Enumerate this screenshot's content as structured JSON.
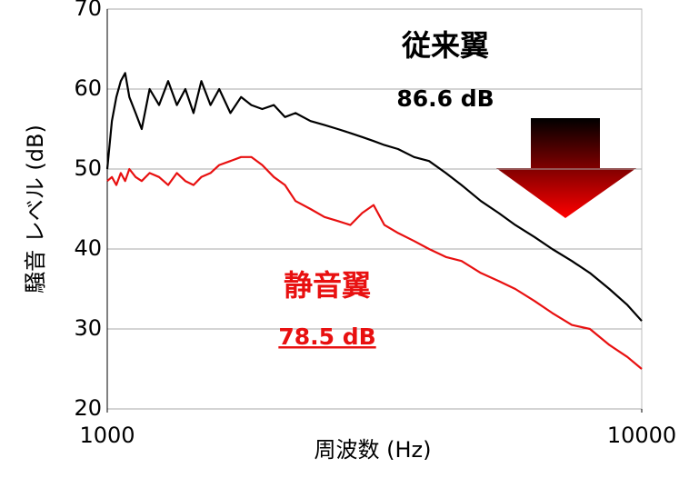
{
  "chart_data": {
    "type": "line",
    "x_label": "周波数 (Hz)",
    "y_label": "騒音 レベル (dB)",
    "x": [
      1000,
      1020,
      1040,
      1060,
      1080,
      1100,
      1130,
      1160,
      1200,
      1250,
      1300,
      1350,
      1400,
      1450,
      1500,
      1560,
      1620,
      1700,
      1780,
      1860,
      1950,
      2050,
      2150,
      2250,
      2400,
      2550,
      2700,
      2850,
      3000,
      3150,
      3300,
      3500,
      3750,
      4000,
      4300,
      4600,
      5000,
      5400,
      5800,
      6300,
      6800,
      7400,
      8000,
      8700,
      9400,
      10000
    ],
    "xlim": [
      1000,
      10000
    ],
    "xticks": [
      1000,
      10000
    ],
    "xscale": "log",
    "ylim": [
      20,
      70
    ],
    "yticks": [
      20,
      30,
      40,
      50,
      60,
      70
    ],
    "grid": true,
    "series": [
      {
        "name": "従来翼",
        "color": "#000000",
        "values": [
          50,
          56,
          59,
          61,
          62,
          59,
          57,
          55,
          60,
          58,
          61,
          58,
          60,
          57,
          61,
          58,
          60,
          57,
          59,
          58,
          57.5,
          58,
          56.5,
          57,
          56,
          55.5,
          55,
          54.5,
          54,
          53.5,
          53,
          52.5,
          51.5,
          51,
          49.5,
          48,
          46,
          44.5,
          43,
          41.5,
          40,
          38.5,
          37,
          35,
          33,
          31
        ]
      },
      {
        "name": "静音翼",
        "color": "#e81010",
        "values": [
          48.5,
          49,
          48,
          49.5,
          48.5,
          50,
          49,
          48.5,
          49.5,
          49,
          48,
          49.5,
          48.5,
          48,
          49,
          49.5,
          50.5,
          51,
          51.5,
          51.5,
          50.5,
          49,
          48,
          46,
          45,
          44,
          43.5,
          43,
          44.5,
          45.5,
          43,
          42,
          41,
          40,
          39,
          38.5,
          37,
          36,
          35,
          33.5,
          32,
          30.5,
          30,
          28,
          26.5,
          25
        ]
      }
    ],
    "annotations": [
      "86.6 dB",
      "78.5 dB"
    ]
  }
}
